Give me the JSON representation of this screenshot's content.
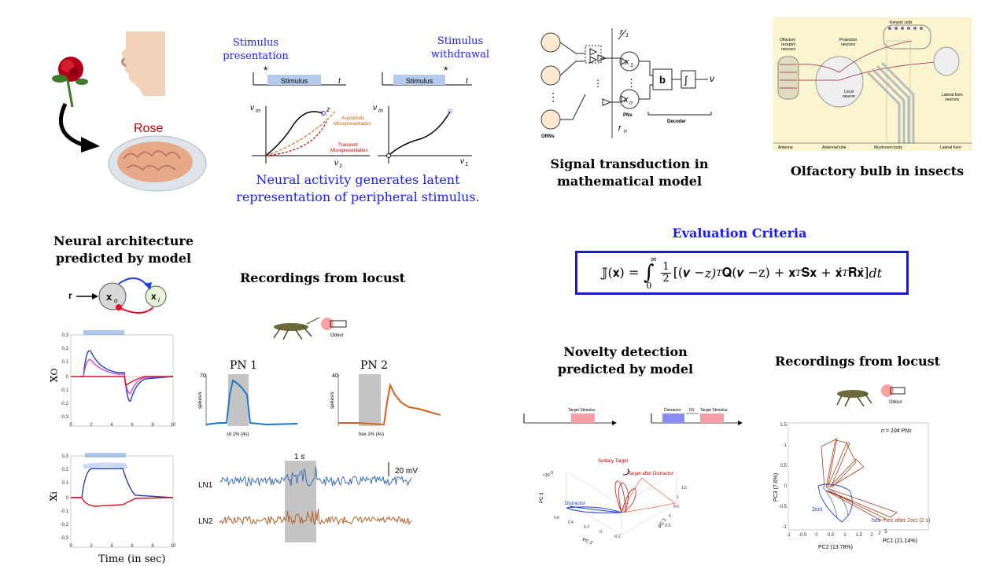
{
  "rose_label": "Rose",
  "stimulus": {
    "presentation": "Stimulus\npresentation",
    "withdrawal": "Stimulus\nwithdrawal",
    "bar_label": "Stimulus",
    "t": "t",
    "star": "*",
    "nu_m": "ν",
    "nu_m_sub": "m",
    "nu_1": "ν",
    "nu_1_sub": "1",
    "z": "z",
    "asymptotic": "Asymptotic\nMisrepresentation",
    "transient": "Transient\nMisrepresentation"
  },
  "latent_caption": "Neural activity generates latent representation of peripheral stimulus.",
  "model": {
    "r1": "r",
    "r1_sub": "1",
    "rn": "r",
    "rn_sub": "n",
    "x1": "x",
    "x1_sub": "1",
    "xn": "x",
    "xn_sub": "n",
    "b": "b",
    "integral": "∫",
    "nu": "ν",
    "pns": "PNs",
    "orns": "ORNs",
    "decoder": "Decoder",
    "dots": "⋮"
  },
  "signal_caption": "Signal transduction in\nmathematical model",
  "insect": {
    "kenyon": "Kenyon cells",
    "olfactory_receptor": "Olfactory\nreceptor\nneurons",
    "projection": "Projection\nneurons",
    "local": "Local\nneuron",
    "lateral_horn_neurons": "Lateral horn\nneurons",
    "antenna": "Antenna",
    "antennal_lobe": "Antennal lobe",
    "mushroom_body": "Mushroom body",
    "lateral_horn": "Lateral horn"
  },
  "olfactory_caption": "Olfactory bulb in insects",
  "arch_caption": "Neural architecture\npredicted by model",
  "arch": {
    "r": "r",
    "x0": "x",
    "x0_sub": "o",
    "xi": "x",
    "xi_sub": "i"
  },
  "xo_plot": {
    "ylabel": "x",
    "ylabel_sub": "O",
    "yticks": [
      "0.3",
      "0.2",
      "0.1",
      "0",
      "-0.1",
      "-0.2",
      "-0.3"
    ],
    "xticks": [
      "0",
      "2",
      "4",
      "6",
      "8",
      "10"
    ]
  },
  "xi_plot": {
    "ylabel": "x",
    "ylabel_sub": "i",
    "yticks": [
      "0.3",
      "0.2",
      "0.1",
      "0",
      "-0.1",
      "-0.2",
      "-0.3"
    ],
    "xticks": [
      "0",
      "2",
      "4",
      "6",
      "8",
      "10"
    ],
    "xlabel": "Time (in sec)"
  },
  "locust1": {
    "title": "Recordings from locust",
    "odour": "Odour",
    "pn1": "PN 1",
    "pn2": "PN 2",
    "pn1_ytick": "70",
    "pn2_ytick": "40",
    "ylabel": "spikes/s",
    "pn1_xlabel": "cit 1% (4s)",
    "pn2_xlabel": "hex 1% (4s)",
    "scale_time": "1 s",
    "scale_mv": "20 mV",
    "ln1": "LN1",
    "ln2": "LN2"
  },
  "eval_title": "Evaluation Criteria",
  "equation": {
    "lhs": "𝕁(𝐱) = ",
    "int": "∫",
    "sup": "∞",
    "sub": "0",
    "half_num": "1",
    "half_den": "2",
    "body_a": "[(𝝂 − ",
    "body_b": "z)",
    "T1": "T",
    "body_c": "𝐐(𝝂 − ",
    "body_d": "z) + 𝐱",
    "T2": "T",
    "body_e": "𝐒𝐱 + 𝐱̇",
    "T3": "T",
    "body_f": "𝐑𝐱̇]",
    "dt": "dt"
  },
  "novelty_caption": "Novelty detection\npredicted by model",
  "novelty": {
    "target_stimulus": "Target Stimulus",
    "distractor": "Distractor",
    "isi": "ISI",
    "target_stimulus2": "Target Stimulus",
    "solitary": "Solitary Target",
    "after": "Target after Distractor",
    "distractor_lbl": "Distractor",
    "exp": "×10",
    "exp_sup": "-3",
    "pc1": "PC 1",
    "pc2": "PC 2",
    "pc3": "PC 3",
    "ticks_pc2": [
      "0.6",
      "0.4",
      "0.2",
      "0",
      "-0.2"
    ],
    "ticks_pc1": [
      "1.5",
      "1",
      "0.5",
      "0",
      "-0.5"
    ]
  },
  "locust2": {
    "title": "Recordings from locust",
    "odour": "Odour",
    "n": "n = 104 PNs",
    "pc3": "PC3 (7.6%)",
    "pc2": "PC2 (13.78%)",
    "pc1": "PC1 (21.14%)",
    "oct": "2oct",
    "hex": "hex",
    "hex_after": "hex after 2oct (2 s)",
    "yticks": [
      "1.5",
      "1",
      "0.5",
      "0",
      "-0.5",
      "-1"
    ],
    "xticks_pc2": [
      "-1",
      "-0.5",
      "0",
      "0.5",
      "1",
      "1.5",
      "2"
    ],
    "xticks_pc1": [
      "2",
      "5"
    ]
  },
  "colors": {
    "blue": "#1a1aff",
    "red": "#c00000",
    "pink": "#e040c0",
    "orange": "#d95f1e",
    "trace_blue": "#3a6fb5"
  }
}
